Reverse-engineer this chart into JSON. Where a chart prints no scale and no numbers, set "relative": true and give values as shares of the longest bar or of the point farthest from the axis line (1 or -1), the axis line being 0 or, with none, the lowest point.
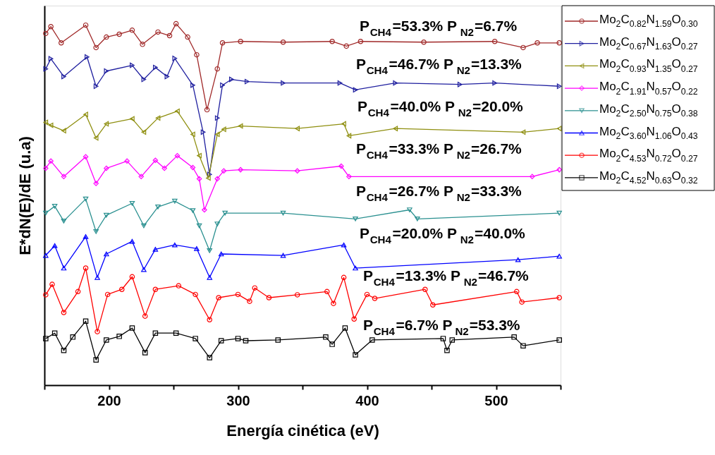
{
  "chart_data": {
    "type": "line",
    "relative": true,
    "xlabel": "Energía cinética (eV)",
    "ylabel": "E*dN(E)/dE (u.a)",
    "xlim": [
      150,
      550
    ],
    "xticks": [
      {
        "value": 150,
        "label": null
      },
      200,
      {
        "value": 250,
        "label": null
      },
      300,
      {
        "value": 350,
        "label": null
      },
      400,
      {
        "value": 450,
        "label": null
      },
      500,
      {
        "value": 550,
        "label": null
      }
    ],
    "grid": false,
    "legend": "right",
    "annotations": [
      "P$_{CH4}$=53.3% P$_{N2}$=6.7%",
      "P$_{CH4}$=46.7% P$_{N2}$=13.3%",
      "P$_{CH4}$=40.0% P$_{N2}$=20.0%",
      "P$_{CH4}$=33.3% P$_{N2}$=26.7%",
      "P$_{CH4}$=26.7% P$_{N2}$=33.3%",
      "P$_{CH4}$=20.0% P$_{N2}$=40.0%",
      "P$_{CH4}$=13.3% P$_{N2}$=46.7%",
      "P$_{CH4}$=6.7% P$_{N2}$=53.3%"
    ],
    "series": [
      {
        "name": "Mo$_{2}$C$_{0.82}$N$_{1.59}$O$_{0.30}$",
        "color": "#a02828",
        "marker": "circle",
        "x": [
          151,
          155,
          163,
          182,
          190,
          198,
          208,
          218,
          226,
          238,
          247,
          252,
          261,
          268,
          276,
          284,
          288,
          302,
          335,
          373,
          384,
          395,
          444,
          499,
          521,
          532,
          549
        ],
        "values": [
          0.973,
          0.992,
          0.947,
          0.996,
          0.934,
          0.963,
          0.971,
          0.982,
          0.943,
          0.977,
          0.967,
          1.0,
          0.963,
          0.914,
          0.762,
          0.875,
          0.947,
          0.951,
          0.949,
          0.951,
          0.938,
          0.951,
          0.949,
          0.951,
          0.934,
          0.947,
          0.947
        ]
      },
      {
        "name": "Mo$_{2}$C$_{0.67}$N$_{1.63}$O$_{0.27}$",
        "color": "#1f1f9f",
        "marker": "triangle-right",
        "x": [
          151,
          155,
          165,
          183,
          190,
          198,
          218,
          227,
          236,
          245,
          251,
          265,
          273,
          278,
          284,
          288,
          295,
          307,
          335,
          379,
          391,
          422,
          472,
          499,
          549
        ],
        "values": [
          0.875,
          0.903,
          0.854,
          0.908,
          0.827,
          0.869,
          0.885,
          0.846,
          0.879,
          0.854,
          0.904,
          0.83,
          0.7,
          0.583,
          0.739,
          0.83,
          0.846,
          0.84,
          0.836,
          0.836,
          0.817,
          0.836,
          0.832,
          0.836,
          0.827
        ]
      },
      {
        "name": "Mo$_{2}$C$_{0.93}$N$_{1.35}$O$_{0.27}$",
        "color": "#8f8f10",
        "marker": "triangle-left",
        "x": [
          151,
          155,
          165,
          182,
          190,
          198,
          218,
          227,
          238,
          253,
          265,
          270,
          277,
          284,
          289,
          302,
          346,
          382,
          386,
          422,
          521,
          549
        ],
        "values": [
          0.727,
          0.719,
          0.704,
          0.749,
          0.684,
          0.723,
          0.737,
          0.7,
          0.739,
          0.758,
          0.694,
          0.635,
          0.573,
          0.694,
          0.708,
          0.717,
          0.71,
          0.723,
          0.69,
          0.71,
          0.7,
          0.71
        ]
      },
      {
        "name": "Mo$_{2}$C$_{1.91}$N$_{0.57}$O$_{0.22}$",
        "color": "#ff00ff",
        "marker": "diamond",
        "x": [
          151,
          155,
          165,
          182,
          190,
          198,
          214,
          225,
          236,
          243,
          253,
          265,
          270,
          274,
          284,
          289,
          302,
          346,
          380,
          386,
          528,
          549
        ],
        "values": [
          0.6,
          0.62,
          0.577,
          0.632,
          0.558,
          0.6,
          0.62,
          0.577,
          0.622,
          0.6,
          0.635,
          0.602,
          0.571,
          0.485,
          0.571,
          0.593,
          0.596,
          0.593,
          0.606,
          0.577,
          0.577,
          0.596
        ]
      },
      {
        "name": "Mo$_{2}$C$_{2.50}$N$_{0.75}$O$_{0.38}$",
        "color": "#2a9090",
        "marker": "triangle-down",
        "x": [
          151,
          158,
          165,
          182,
          190,
          198,
          218,
          227,
          238,
          251,
          265,
          270,
          278,
          284,
          290,
          335,
          391,
          433,
          439,
          549
        ],
        "values": [
          0.476,
          0.495,
          0.454,
          0.515,
          0.425,
          0.47,
          0.503,
          0.441,
          0.493,
          0.509,
          0.483,
          0.441,
          0.372,
          0.446,
          0.476,
          0.476,
          0.46,
          0.485,
          0.46,
          0.476
        ]
      },
      {
        "name": "Mo$_{2}$C$_{3.60}$N$_{1.06}$O$_{0.43}$",
        "color": "#0000ff",
        "marker": "triangle-up",
        "x": [
          151,
          158,
          165,
          182,
          191,
          198,
          218,
          227,
          236,
          251,
          268,
          278,
          287,
          335,
          382,
          391,
          517,
          549
        ],
        "values": [
          0.359,
          0.386,
          0.324,
          0.411,
          0.298,
          0.363,
          0.398,
          0.32,
          0.376,
          0.388,
          0.378,
          0.298,
          0.363,
          0.359,
          0.388,
          0.324,
          0.347,
          0.357
        ]
      },
      {
        "name": "Mo$_{2}$C$_{4.53}$N$_{0.72}$O$_{0.27}$",
        "color": "#ff0000",
        "marker": "circle",
        "x": [
          151,
          156,
          165,
          176,
          182,
          191,
          199,
          210,
          218,
          228,
          236,
          254,
          267,
          278,
          285,
          300,
          309,
          313,
          324,
          346,
          369,
          374,
          382,
          390,
          400,
          406,
          445,
          451,
          516,
          520,
          549
        ],
        "values": [
          0.25,
          0.279,
          0.201,
          0.259,
          0.324,
          0.148,
          0.251,
          0.265,
          0.3,
          0.191,
          0.265,
          0.275,
          0.251,
          0.181,
          0.242,
          0.251,
          0.232,
          0.269,
          0.242,
          0.25,
          0.259,
          0.226,
          0.298,
          0.183,
          0.251,
          0.24,
          0.265,
          0.222,
          0.259,
          0.23,
          0.242
        ]
      },
      {
        "name": "Mo$_{2}$C$_{4.52}$N$_{0.63}$O$_{0.32}$",
        "color": "#000000",
        "marker": "square",
        "x": [
          151,
          158,
          165,
          172,
          182,
          190,
          198,
          208,
          218,
          228,
          236,
          252,
          267,
          278,
          287,
          300,
          306,
          331,
          368,
          373,
          383,
          391,
          404,
          459,
          462,
          466,
          514,
          521,
          549
        ],
        "values": [
          0.129,
          0.144,
          0.096,
          0.133,
          0.177,
          0.07,
          0.125,
          0.135,
          0.158,
          0.09,
          0.144,
          0.144,
          0.129,
          0.076,
          0.123,
          0.129,
          0.123,
          0.125,
          0.133,
          0.113,
          0.158,
          0.084,
          0.125,
          0.129,
          0.096,
          0.125,
          0.133,
          0.109,
          0.125
        ]
      }
    ]
  }
}
